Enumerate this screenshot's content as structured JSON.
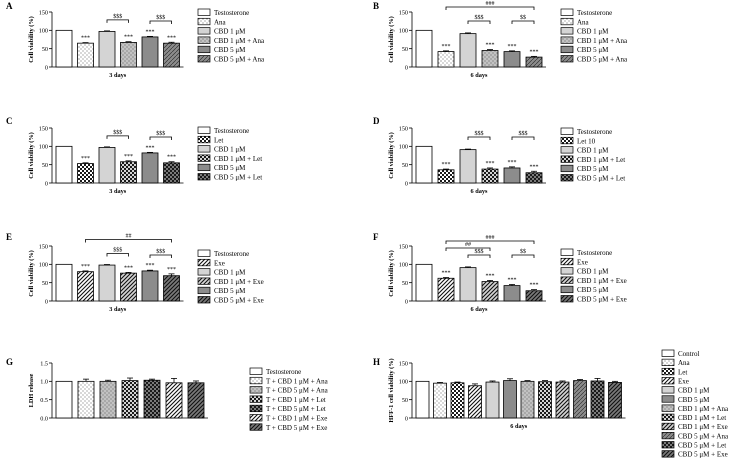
{
  "patterns": {
    "white": {
      "fill": "#ffffff",
      "kind": "solid"
    },
    "dots": {
      "fill": "#ffffff",
      "kind": "dots"
    },
    "lightgray": {
      "fill": "#d4d4d4",
      "kind": "solid"
    },
    "graydots": {
      "fill": "#c2c2c2",
      "kind": "dots"
    },
    "gray": {
      "fill": "#8c8c8c",
      "kind": "solid"
    },
    "graydiag": {
      "fill": "#8c8c8c",
      "kind": "diag"
    },
    "check": {
      "fill": "#ffffff",
      "kind": "check"
    },
    "checkgray": {
      "fill": "#d4d4d4",
      "kind": "check"
    },
    "checkdark": {
      "fill": "#7a7a7a",
      "kind": "check"
    },
    "stripe": {
      "fill": "#ffffff",
      "kind": "stripe"
    },
    "stripegray": {
      "fill": "#d4d4d4",
      "kind": "stripe"
    },
    "stripedark": {
      "fill": "#7a7a7a",
      "kind": "stripe"
    }
  },
  "chart_data": [
    {
      "id": "A",
      "type": "bar",
      "panel_label": "A",
      "xlabel": "3 days",
      "ylabel": "Cell viability (%)",
      "ylim": [
        0,
        150
      ],
      "yticks": [
        0,
        50,
        100,
        150
      ],
      "grid": false,
      "legend_position": "right",
      "categories": [
        "Testosterone",
        "Ana",
        "CBD 1 μM",
        "CBD 1 μM + Ana",
        "CBD 5 μM",
        "CBD 5 μM + Ana"
      ],
      "values": [
        100,
        65,
        97,
        67,
        82,
        65
      ],
      "errors": [
        0,
        1.5,
        1.5,
        2,
        1.5,
        2.5
      ],
      "patterns": [
        "white",
        "dots",
        "lightgray",
        "graydots",
        "gray",
        "graydiag"
      ],
      "bar_annotations": [
        "",
        "***",
        "",
        "***",
        "***",
        "***"
      ],
      "brackets": [
        {
          "from": 2,
          "to": 3,
          "level": 1,
          "label": "$$$"
        },
        {
          "from": 4,
          "to": 5,
          "level": 1,
          "label": "$$$"
        }
      ]
    },
    {
      "id": "B",
      "type": "bar",
      "panel_label": "B",
      "xlabel": "6 days",
      "ylabel": "Cell viability (%)",
      "ylim": [
        0,
        150
      ],
      "yticks": [
        0,
        50,
        100,
        150
      ],
      "grid": false,
      "legend_position": "right",
      "categories": [
        "Testosterone",
        "Ana",
        "CBD 1 μM",
        "CBD 1 μM + Ana",
        "CBD 5 μM",
        "CBD 5 μM + Ana"
      ],
      "values": [
        100,
        42,
        91,
        45,
        42,
        27
      ],
      "errors": [
        0,
        2,
        2,
        2.5,
        2,
        2
      ],
      "patterns": [
        "white",
        "dots",
        "lightgray",
        "graydots",
        "gray",
        "graydiag"
      ],
      "bar_annotations": [
        "",
        "***",
        "",
        "***",
        "***",
        "***"
      ],
      "brackets": [
        {
          "from": 2,
          "to": 3,
          "level": 1,
          "label": "$$$"
        },
        {
          "from": 4,
          "to": 5,
          "level": 1,
          "label": "$$"
        },
        {
          "from": 1,
          "to": 5,
          "level": 3,
          "label": "###"
        }
      ]
    },
    {
      "id": "C",
      "type": "bar",
      "panel_label": "C",
      "xlabel": "3 days",
      "ylabel": "Cell viability (%)",
      "ylim": [
        0,
        150
      ],
      "yticks": [
        0,
        50,
        100,
        150
      ],
      "grid": false,
      "legend_position": "right",
      "categories": [
        "Testosterone",
        "Let",
        "CBD 1 μM",
        "CBD 1 μM + Let",
        "CBD 5 μM",
        "CBD 5 μM + Let"
      ],
      "values": [
        100,
        53,
        97,
        58,
        82,
        55
      ],
      "errors": [
        0,
        2,
        1.5,
        2.5,
        1.5,
        3
      ],
      "patterns": [
        "white",
        "check",
        "lightgray",
        "checkgray",
        "gray",
        "checkdark"
      ],
      "bar_annotations": [
        "",
        "***",
        "",
        "***",
        "***",
        "***"
      ],
      "brackets": [
        {
          "from": 2,
          "to": 3,
          "level": 1,
          "label": "$$$"
        },
        {
          "from": 4,
          "to": 5,
          "level": 1,
          "label": "$$$"
        }
      ]
    },
    {
      "id": "D",
      "type": "bar",
      "panel_label": "D",
      "xlabel": "6 days",
      "ylabel": "Cell viability (%)",
      "ylim": [
        0,
        150
      ],
      "yticks": [
        0,
        50,
        100,
        150
      ],
      "grid": false,
      "legend_position": "right",
      "categories": [
        "Testosterone",
        "Let 10",
        "CBD 1 μM",
        "CBD 1 μM + Let",
        "CBD 5 μM",
        "CBD 5 μM + Let"
      ],
      "values": [
        100,
        36,
        91,
        38,
        41,
        28
      ],
      "errors": [
        0,
        2,
        1.5,
        3,
        3,
        4
      ],
      "patterns": [
        "white",
        "check",
        "lightgray",
        "checkgray",
        "gray",
        "checkdark"
      ],
      "bar_annotations": [
        "",
        "***",
        "",
        "***",
        "***",
        "***"
      ],
      "brackets": [
        {
          "from": 2,
          "to": 3,
          "level": 1,
          "label": "$$$"
        },
        {
          "from": 4,
          "to": 5,
          "level": 1,
          "label": "$$$"
        }
      ]
    },
    {
      "id": "E",
      "type": "bar",
      "panel_label": "E",
      "xlabel": "3 days",
      "ylabel": "Cell viability (%)",
      "ylim": [
        0,
        150
      ],
      "yticks": [
        0,
        50,
        100,
        150
      ],
      "grid": false,
      "legend_position": "right",
      "categories": [
        "Testosterone",
        "Exe",
        "CBD 1 μM",
        "CBD 1 μM + Exe",
        "CBD 5 μM",
        "CBD 5 μM + Exe"
      ],
      "values": [
        100,
        80,
        98,
        76,
        82,
        69
      ],
      "errors": [
        0,
        2,
        1.5,
        2,
        2,
        5
      ],
      "patterns": [
        "white",
        "stripe",
        "lightgray",
        "stripegray",
        "gray",
        "stripedark"
      ],
      "bar_annotations": [
        "",
        "***",
        "",
        "***",
        "***",
        "***"
      ],
      "brackets": [
        {
          "from": 2,
          "to": 3,
          "level": 1,
          "label": "$$$"
        },
        {
          "from": 4,
          "to": 5,
          "level": 1,
          "label": "$$$"
        },
        {
          "from": 1,
          "to": 5,
          "level": 3,
          "label": "##"
        }
      ]
    },
    {
      "id": "F",
      "type": "bar",
      "panel_label": "F",
      "xlabel": "6 days",
      "ylabel": "Cell viability (%)",
      "ylim": [
        0,
        150
      ],
      "yticks": [
        0,
        50,
        100,
        150
      ],
      "grid": false,
      "legend_position": "right",
      "categories": [
        "Testosterone",
        "Exe",
        "CBD 1 μM",
        "CBD 1 μM + Exe",
        "CBD 5 μM",
        "CBD 5 μM + Exe"
      ],
      "values": [
        100,
        62,
        91,
        53,
        42,
        28
      ],
      "errors": [
        0,
        2,
        2,
        3,
        3,
        3
      ],
      "patterns": [
        "white",
        "stripe",
        "lightgray",
        "stripegray",
        "gray",
        "stripedark"
      ],
      "bar_annotations": [
        "",
        "***",
        "",
        "***",
        "***",
        "***"
      ],
      "brackets": [
        {
          "from": 2,
          "to": 3,
          "level": 1,
          "label": "$$$"
        },
        {
          "from": 4,
          "to": 5,
          "level": 1,
          "label": "$$"
        },
        {
          "from": 1,
          "to": 3,
          "level": 2,
          "label": "##"
        },
        {
          "from": 1,
          "to": 5,
          "level": 3,
          "label": "###"
        }
      ]
    },
    {
      "id": "G",
      "type": "bar",
      "panel_label": "G",
      "xlabel": "",
      "ylabel": "LDH release",
      "ylim": [
        0,
        1.5
      ],
      "yticks": [
        0.0,
        0.5,
        1.0,
        1.5
      ],
      "grid": false,
      "legend_position": "right",
      "categories": [
        "Testosterone",
        "T + CBD 1 μM + Ana",
        "T + CBD 5 μM + Ana",
        "T + CBD 1 μM + Let",
        "T + CBD 5 μM + Let",
        "T + CBD 1 μM + Exe",
        "T + CBD 5 μM + Exe"
      ],
      "values": [
        1.0,
        1.0,
        1.0,
        1.02,
        1.03,
        0.96,
        0.96
      ],
      "errors": [
        0,
        0.06,
        0.03,
        0.07,
        0.03,
        0.12,
        0.05
      ],
      "patterns": [
        "white",
        "dots",
        "graydots",
        "checkgray",
        "checkdark",
        "stripe",
        "stripedark"
      ],
      "bar_annotations": [
        "",
        "",
        "",
        "",
        "",
        "",
        ""
      ],
      "brackets": []
    },
    {
      "id": "H",
      "type": "bar",
      "panel_label": "H",
      "xlabel": "6 days",
      "ylabel": "HFF-1 cell viability (%)",
      "ylim": [
        0,
        150
      ],
      "yticks": [
        0,
        50,
        100,
        150
      ],
      "grid": false,
      "legend_position": "right",
      "categories": [
        "Control",
        "Ana",
        "Let",
        "Exe",
        "CBD 1 μM",
        "CBD 5 μM",
        "CBD 1 μM + Ana",
        "CBD 1 μM + Let",
        "CBD 1 μM + Exe",
        "CBD 5 μM + Ana",
        "CBD 5 μM + Let",
        "CBD 5 μM + Exe"
      ],
      "values": [
        100,
        95,
        96,
        88,
        98,
        102,
        100,
        99,
        98,
        102,
        101,
        97
      ],
      "errors": [
        0,
        2,
        2,
        5,
        3,
        5,
        2,
        3,
        3,
        3,
        7,
        3
      ],
      "patterns": [
        "white",
        "dots",
        "check",
        "stripe",
        "lightgray",
        "gray",
        "graydots",
        "checkgray",
        "stripegray",
        "graydiag",
        "checkdark",
        "stripedark"
      ],
      "bar_annotations": [
        "",
        "",
        "",
        "",
        "",
        "",
        "",
        "",
        "",
        "",
        "",
        ""
      ],
      "brackets": []
    }
  ]
}
